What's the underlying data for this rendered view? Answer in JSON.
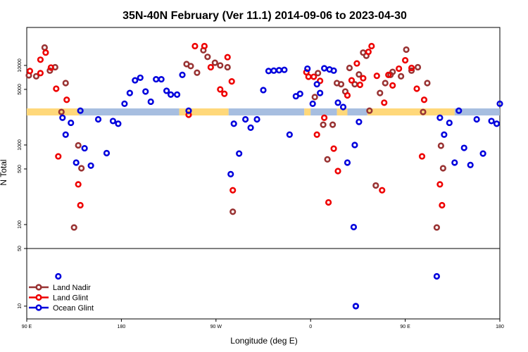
{
  "chart_data": {
    "type": "scatter",
    "title": "35N-40N February (Ver 11.1)   2014-09-06 to 2023-04-30",
    "xlabel": "Longitude (deg E)",
    "ylabel": "N Total",
    "x_ticks": [
      {
        "value": 90,
        "label": "90 E"
      },
      {
        "value": 180,
        "label": "180"
      },
      {
        "value": 270,
        "label": "90 W"
      },
      {
        "value": 360,
        "label": "0"
      },
      {
        "value": 450,
        "label": "90 E"
      },
      {
        "value": 540,
        "label": "180"
      }
    ],
    "upper_y_ticks": [
      {
        "value": 100,
        "label": "100"
      },
      {
        "value": 500,
        "label": "500"
      },
      {
        "value": 1000,
        "label": "1000"
      },
      {
        "value": 5000,
        "label": "5000"
      },
      {
        "value": 10000,
        "label": "10000"
      }
    ],
    "lower_y_ticks": [
      {
        "value": 10,
        "label": "10"
      },
      {
        "value": 50,
        "label": "50"
      }
    ],
    "xlim": [
      90,
      540
    ],
    "upper_ylim": [
      50,
      30000
    ],
    "lower_ylim": [
      7,
      50
    ],
    "y_scale": "log",
    "legend_position": "bottom-left",
    "series": [
      {
        "name": "Land Nadir",
        "color": "#993333",
        "points": [
          [
            92,
            7500
          ],
          [
            99,
            7300
          ],
          [
            107,
            16800
          ],
          [
            112,
            8600
          ],
          [
            117,
            9500
          ],
          [
            123,
            2600
          ],
          [
            127,
            6000
          ],
          [
            135,
            92
          ],
          [
            139,
            990
          ],
          [
            142,
            510
          ],
          [
            242,
            10400
          ],
          [
            246,
            9800
          ],
          [
            252,
            8100
          ],
          [
            258,
            15500
          ],
          [
            262,
            12800
          ],
          [
            269,
            10800
          ],
          [
            274,
            10000
          ],
          [
            281,
            9500
          ],
          [
            286,
            145
          ],
          [
            364,
            4000
          ],
          [
            367,
            8000
          ],
          [
            372,
            1800
          ],
          [
            376,
            660
          ],
          [
            381,
            1800
          ],
          [
            385,
            6000
          ],
          [
            389,
            5800
          ],
          [
            393,
            4700
          ],
          [
            397,
            9300
          ],
          [
            402,
            5800
          ],
          [
            406,
            7700
          ],
          [
            410,
            14500
          ],
          [
            413,
            13200
          ],
          [
            416,
            2700
          ],
          [
            422,
            310
          ],
          [
            426,
            4500
          ],
          [
            431,
            6000
          ],
          [
            436,
            7600
          ],
          [
            438,
            8300
          ],
          [
            446,
            7300
          ],
          [
            451,
            15800
          ],
          [
            456,
            8600
          ],
          [
            462,
            9500
          ],
          [
            467,
            2600
          ],
          [
            471,
            6000
          ],
          [
            480,
            92
          ],
          [
            484,
            980
          ],
          [
            486,
            510
          ]
        ]
      },
      {
        "name": "Land Glint",
        "color": "#ee0000",
        "points": [
          [
            93,
            8500
          ],
          [
            103,
            8000
          ],
          [
            103,
            11800
          ],
          [
            108,
            14500
          ],
          [
            113,
            9400
          ],
          [
            118,
            5100
          ],
          [
            120,
            720
          ],
          [
            128,
            3700
          ],
          [
            139,
            320
          ],
          [
            141,
            175
          ],
          [
            244,
            2400
          ],
          [
            250,
            17500
          ],
          [
            259,
            17500
          ],
          [
            265,
            9500
          ],
          [
            274,
            5000
          ],
          [
            278,
            4400
          ],
          [
            281,
            12700
          ],
          [
            285,
            6300
          ],
          [
            286,
            270
          ],
          [
            356,
            8200
          ],
          [
            358,
            7200
          ],
          [
            363,
            7200
          ],
          [
            366,
            1350
          ],
          [
            369,
            6400
          ],
          [
            373,
            2200
          ],
          [
            377,
            190
          ],
          [
            382,
            900
          ],
          [
            386,
            470
          ],
          [
            395,
            4200
          ],
          [
            399,
            6500
          ],
          [
            404,
            10600
          ],
          [
            407,
            5700
          ],
          [
            410,
            6900
          ],
          [
            415,
            14800
          ],
          [
            418,
            17500
          ],
          [
            423,
            7400
          ],
          [
            428,
            270
          ],
          [
            430,
            3400
          ],
          [
            434,
            7600
          ],
          [
            438,
            5600
          ],
          [
            444,
            9100
          ],
          [
            450,
            11600
          ],
          [
            456,
            9300
          ],
          [
            461,
            5100
          ],
          [
            466,
            720
          ],
          [
            468,
            3700
          ],
          [
            483,
            320
          ],
          [
            485,
            175
          ]
        ]
      },
      {
        "name": "Ocean Glint",
        "color": "#0000dd",
        "points": [
          [
            120,
            23
          ],
          [
            124,
            2200
          ],
          [
            127,
            1350
          ],
          [
            132,
            1900
          ],
          [
            137,
            600
          ],
          [
            141,
            2700
          ],
          [
            145,
            910
          ],
          [
            151,
            550
          ],
          [
            158,
            2100
          ],
          [
            166,
            790
          ],
          [
            172,
            2000
          ],
          [
            177,
            1850
          ],
          [
            183,
            3300
          ],
          [
            188,
            4500
          ],
          [
            193,
            6500
          ],
          [
            198,
            7000
          ],
          [
            203,
            4700
          ],
          [
            208,
            3500
          ],
          [
            213,
            6700
          ],
          [
            218,
            6700
          ],
          [
            223,
            4800
          ],
          [
            227,
            4300
          ],
          [
            233,
            4300
          ],
          [
            238,
            7600
          ],
          [
            244,
            2700
          ],
          [
            284,
            430
          ],
          [
            287,
            1850
          ],
          [
            292,
            780
          ],
          [
            298,
            2100
          ],
          [
            303,
            1650
          ],
          [
            309,
            2100
          ],
          [
            315,
            4900
          ],
          [
            320,
            8500
          ],
          [
            325,
            8600
          ],
          [
            330,
            8700
          ],
          [
            335,
            8800
          ],
          [
            340,
            1350
          ],
          [
            346,
            4100
          ],
          [
            350,
            4400
          ],
          [
            357,
            9100
          ],
          [
            362,
            3300
          ],
          [
            366,
            5800
          ],
          [
            369,
            4500
          ],
          [
            373,
            9200
          ],
          [
            378,
            8900
          ],
          [
            382,
            8600
          ],
          [
            386,
            3400
          ],
          [
            391,
            3000
          ],
          [
            395,
            600
          ],
          [
            401,
            93
          ],
          [
            402,
            1000
          ],
          [
            406,
            1950
          ],
          [
            480,
            23
          ],
          [
            483,
            2200
          ],
          [
            487,
            1350
          ],
          [
            492,
            1900
          ],
          [
            497,
            600
          ],
          [
            501,
            2700
          ],
          [
            506,
            920
          ],
          [
            512,
            560
          ],
          [
            518,
            2100
          ],
          [
            524,
            780
          ],
          [
            532,
            2000
          ],
          [
            537,
            1850
          ],
          [
            540,
            3300
          ],
          [
            403,
            10
          ],
          [
            403,
            10
          ]
        ]
      }
    ]
  }
}
